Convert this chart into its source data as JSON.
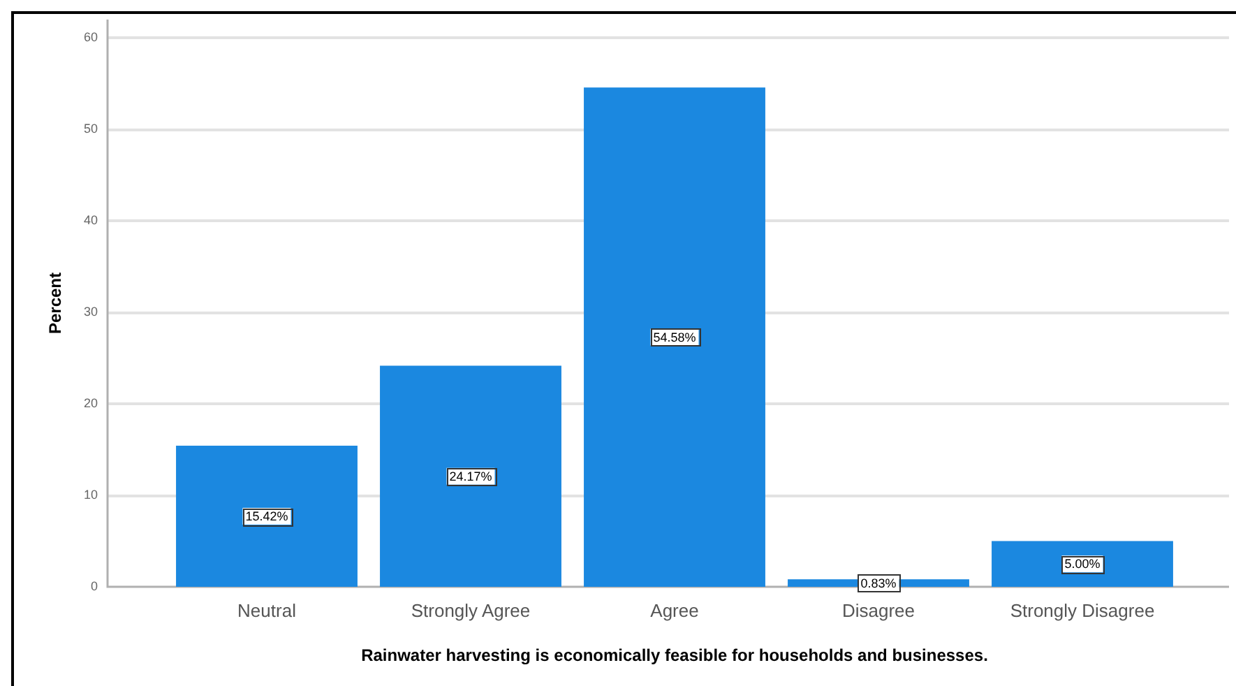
{
  "chart_data": {
    "type": "bar",
    "xlabel": "Rainwater harvesting is economically feasible for households and businesses.",
    "ylabel": "Percent",
    "categories": [
      "Neutral",
      "Strongly Agree",
      "Agree",
      "Disagree",
      "Strongly Disagree"
    ],
    "values": [
      15.42,
      24.17,
      54.58,
      0.83,
      5.0
    ],
    "color": "#1b88e0",
    "value_labels": [
      "15.42%",
      "24.17%",
      "54.58%",
      "0.83%",
      "5.00%"
    ],
    "ylim": [
      0,
      62
    ],
    "yticks": [
      0,
      10,
      20,
      30,
      40,
      50,
      60
    ],
    "grid": "y"
  }
}
